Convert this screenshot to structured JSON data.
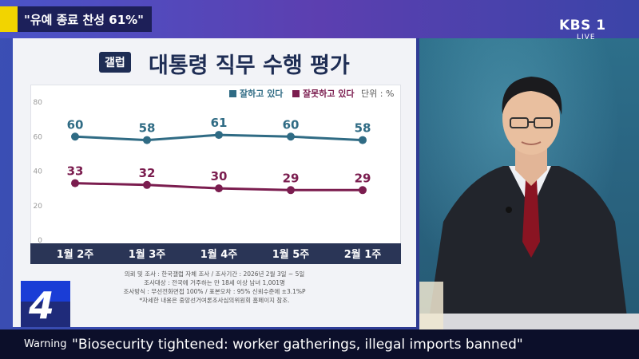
{
  "overlay": {
    "headline": "\"유예 종료 찬성 61%\"",
    "brand": "KBS 1",
    "live": "LIVE",
    "channel": "4"
  },
  "ticker": {
    "label": "Warning",
    "text": "\"Biosecurity tightened: worker gatherings, illegal imports banned\""
  },
  "colors": {
    "approve": "#2f6b84",
    "disapprove": "#7b1d4f",
    "panel_bar": "#2a3556"
  },
  "chart_data": {
    "type": "line",
    "source_tag": "갤럽",
    "title": "대통령 직무 수행 평가",
    "unit": "단위 : %",
    "categories": [
      "1월 2주",
      "1월 3주",
      "1월 4주",
      "1월 5주",
      "2월 1주"
    ],
    "series": [
      {
        "name": "잘하고 있다",
        "values": [
          60,
          58,
          61,
          60,
          58
        ]
      },
      {
        "name": "잘못하고 있다",
        "values": [
          33,
          32,
          30,
          29,
          29
        ]
      }
    ],
    "yticks": [
      0,
      20,
      40,
      60,
      80
    ],
    "ylim": [
      0,
      80
    ],
    "legend": "top-right",
    "notes": [
      "의뢰 및 조사 : 한국갤럽 자체 조사 / 조사기간 : 2026년 2월 3일 ~ 5일",
      "조사대상 : 전국에 거주하는 만 18세 이상 남녀 1,001명",
      "조사방식 : 무선전화면접 100% / 표본오차 : 95% 신뢰수준에 ±3.1%P",
      "*자세한 내용은 중앙선거여론조사심의위원회 홈페이지 참조."
    ]
  }
}
